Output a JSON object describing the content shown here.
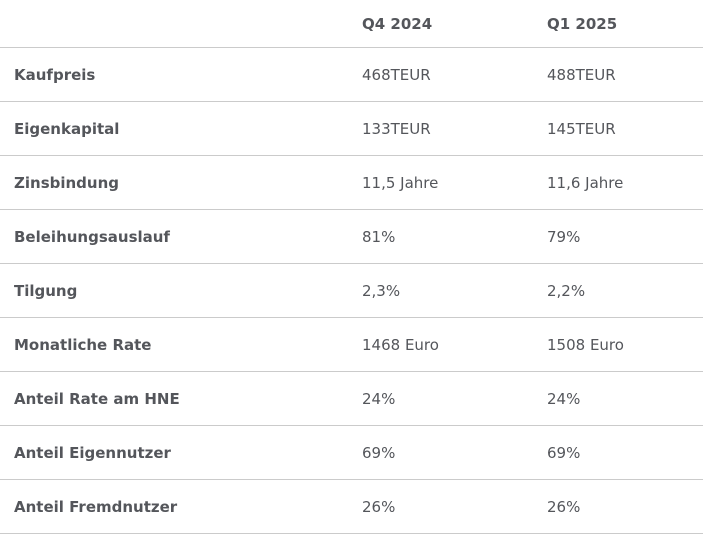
{
  "chart_data": {
    "type": "table",
    "title": "",
    "columns": [
      "",
      "Q4 2024",
      "Q1 2025"
    ],
    "rows": [
      {
        "label": "Kaufpreis",
        "values": [
          "468TEUR",
          "488TEUR"
        ]
      },
      {
        "label": "Eigenkapital",
        "values": [
          "133TEUR",
          "145TEUR"
        ]
      },
      {
        "label": "Zinsbindung",
        "values": [
          "11,5 Jahre",
          "11,6 Jahre"
        ]
      },
      {
        "label": "Beleihungsauslauf",
        "values": [
          "81%",
          "79%"
        ]
      },
      {
        "label": "Tilgung",
        "values": [
          "2,3%",
          "2,2%"
        ]
      },
      {
        "label": "Monatliche Rate",
        "values": [
          "1468 Euro",
          "1508 Euro"
        ]
      },
      {
        "label": "Anteil Rate am HNE",
        "values": [
          "24%",
          "24%"
        ]
      },
      {
        "label": "Anteil Eigennutzer",
        "values": [
          "69%",
          "69%"
        ]
      },
      {
        "label": "Anteil Fremdnutzer",
        "values": [
          "26%",
          "26%"
        ]
      }
    ],
    "layout": {
      "grid": "horizontal-dividers-only",
      "legend": "none"
    }
  },
  "colors": {
    "background": "#ffffff",
    "text": "#54565b",
    "divider": "#cbcbcb"
  }
}
